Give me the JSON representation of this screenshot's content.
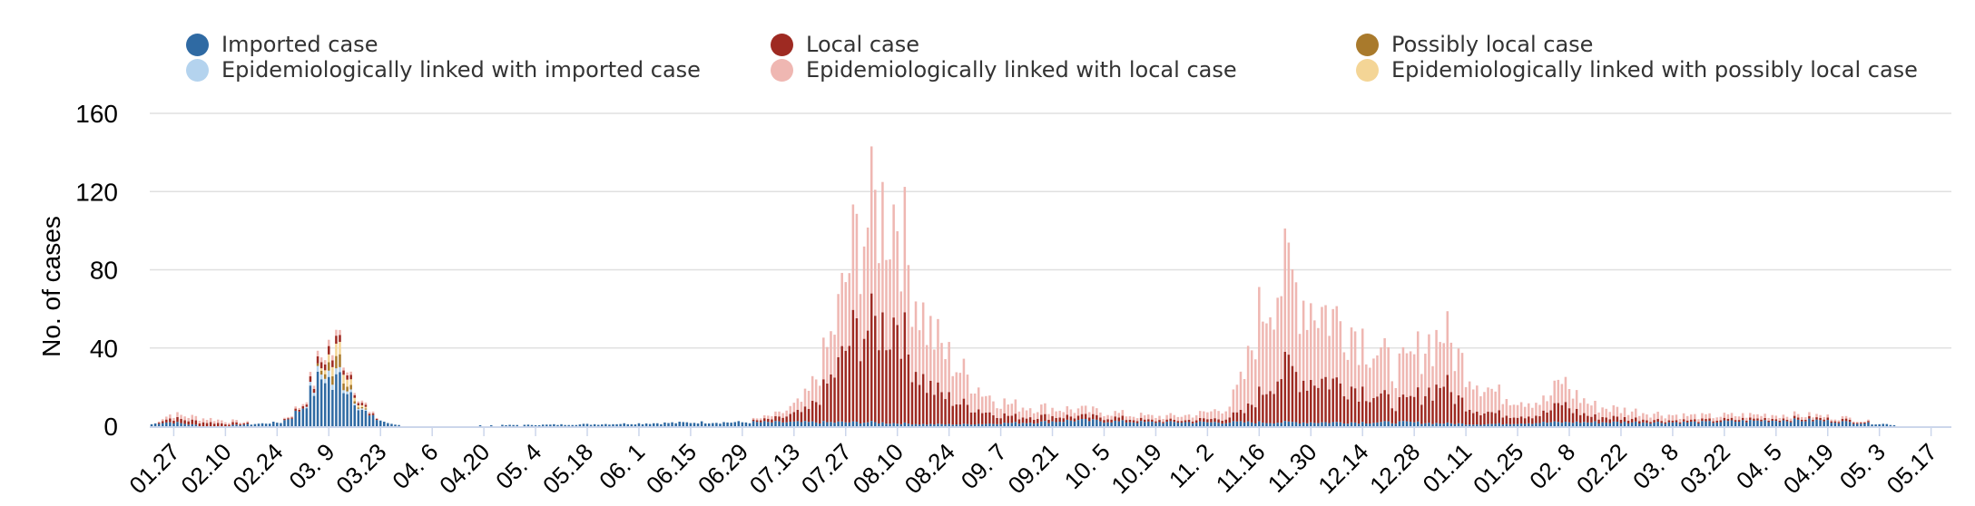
{
  "chart_data": {
    "type": "bar",
    "stacked": true,
    "ylabel": "No. of cases",
    "ylim": [
      0,
      160
    ],
    "yticks": [
      "0",
      "40",
      "80",
      "120",
      "160"
    ],
    "grid": true,
    "legend_position": "top",
    "colors": {
      "imported": "#2f6aa3",
      "imported_linked": "#b4d3ee",
      "local": "#9e2a22",
      "local_linked": "#efb7b2",
      "possibly_local": "#a97a2c",
      "possibly_local_linked": "#f4d596"
    },
    "legend": [
      {
        "key": "imported",
        "label": "Imported case"
      },
      {
        "key": "imported_linked",
        "label": "Epidemiologically linked with imported case"
      },
      {
        "key": "local",
        "label": "Local case"
      },
      {
        "key": "local_linked",
        "label": "Epidemiologically linked with local case"
      },
      {
        "key": "possibly_local",
        "label": "Possibly local case"
      },
      {
        "key": "possibly_local_linked",
        "label": "Epidemiologically linked with possibly local case"
      }
    ],
    "x_labels": [
      "01.27",
      "02.10",
      "02.24",
      "03. 9",
      "03.23",
      "04. 6",
      "04.20",
      "05. 4",
      "05.18",
      "06. 1",
      "06.15",
      "06.29",
      "07.13",
      "07.27",
      "08.10",
      "08.24",
      "09. 7",
      "09.21",
      "10. 5",
      "10.19",
      "11. 2",
      "11.16",
      "11.30",
      "12.14",
      "12.28",
      "01.11",
      "01.25",
      "02. 8",
      "02.22",
      "03. 8",
      "03.22",
      "04. 5",
      "04.19",
      "05. 3",
      "05.17"
    ],
    "x_label_interval_days": 14,
    "days_before_first_label": 6,
    "total_days": 488,
    "series_daily": [
      {
        "name": "Imported case",
        "key": "imported",
        "anchors": [
          [
            0,
            1
          ],
          [
            3,
            2
          ],
          [
            6,
            2
          ],
          [
            10,
            1
          ],
          [
            17,
            0
          ],
          [
            27,
            1
          ],
          [
            35,
            2
          ],
          [
            38,
            5
          ],
          [
            41,
            10
          ],
          [
            45,
            22
          ],
          [
            47,
            27
          ],
          [
            49,
            20
          ],
          [
            51,
            25
          ],
          [
            54,
            18
          ],
          [
            57,
            9
          ],
          [
            59,
            5
          ],
          [
            62,
            3
          ],
          [
            65,
            1
          ],
          [
            70,
            0
          ],
          [
            120,
            1
          ],
          [
            150,
            2
          ],
          [
            168,
            2
          ],
          [
            180,
            2
          ],
          [
            195,
            2
          ],
          [
            210,
            1
          ],
          [
            220,
            1
          ],
          [
            240,
            2
          ],
          [
            250,
            3
          ],
          [
            270,
            2
          ],
          [
            300,
            2
          ],
          [
            320,
            2
          ],
          [
            340,
            2
          ],
          [
            360,
            1
          ],
          [
            380,
            2
          ],
          [
            400,
            2
          ],
          [
            420,
            2
          ],
          [
            440,
            3
          ],
          [
            450,
            3
          ],
          [
            460,
            2
          ],
          [
            470,
            1
          ],
          [
            475,
            0
          ],
          [
            488,
            0
          ]
        ]
      },
      {
        "name": "Epidemiologically linked with imported case",
        "key": "imported_linked",
        "anchors": [
          [
            0,
            0
          ],
          [
            40,
            0
          ],
          [
            44,
            2
          ],
          [
            48,
            3
          ],
          [
            52,
            2
          ],
          [
            56,
            1
          ],
          [
            60,
            0
          ],
          [
            488,
            0
          ]
        ]
      },
      {
        "name": "Local case",
        "key": "local",
        "anchors": [
          [
            0,
            0
          ],
          [
            5,
            2
          ],
          [
            15,
            2
          ],
          [
            30,
            0
          ],
          [
            40,
            1
          ],
          [
            48,
            4
          ],
          [
            52,
            3
          ],
          [
            58,
            1
          ],
          [
            65,
            0
          ],
          [
            160,
            0
          ],
          [
            170,
            2
          ],
          [
            178,
            6
          ],
          [
            182,
            16
          ],
          [
            186,
            28
          ],
          [
            190,
            45
          ],
          [
            194,
            48
          ],
          [
            198,
            50
          ],
          [
            200,
            48
          ],
          [
            202,
            58
          ],
          [
            205,
            35
          ],
          [
            210,
            20
          ],
          [
            215,
            14
          ],
          [
            220,
            10
          ],
          [
            228,
            5
          ],
          [
            235,
            3
          ],
          [
            240,
            3
          ],
          [
            250,
            2
          ],
          [
            260,
            2
          ],
          [
            270,
            1
          ],
          [
            280,
            1
          ],
          [
            290,
            2
          ],
          [
            296,
            5
          ],
          [
            300,
            14
          ],
          [
            304,
            22
          ],
          [
            308,
            28
          ],
          [
            312,
            22
          ],
          [
            318,
            22
          ],
          [
            322,
            20
          ],
          [
            326,
            18
          ],
          [
            332,
            14
          ],
          [
            336,
            10
          ],
          [
            340,
            10
          ],
          [
            345,
            16
          ],
          [
            348,
            18
          ],
          [
            350,
            22
          ],
          [
            352,
            15
          ],
          [
            358,
            8
          ],
          [
            365,
            5
          ],
          [
            372,
            4
          ],
          [
            376,
            4
          ],
          [
            379,
            6
          ],
          [
            382,
            10
          ],
          [
            385,
            6
          ],
          [
            390,
            3
          ],
          [
            400,
            2
          ],
          [
            410,
            1
          ],
          [
            420,
            1
          ],
          [
            440,
            1
          ],
          [
            460,
            1
          ],
          [
            470,
            0
          ],
          [
            488,
            0
          ]
        ]
      },
      {
        "name": "Epidemiologically linked with local case",
        "key": "local_linked",
        "anchors": [
          [
            0,
            0
          ],
          [
            5,
            2
          ],
          [
            15,
            2
          ],
          [
            30,
            0
          ],
          [
            40,
            1
          ],
          [
            48,
            3
          ],
          [
            52,
            2
          ],
          [
            58,
            1
          ],
          [
            65,
            0
          ],
          [
            160,
            0
          ],
          [
            170,
            2
          ],
          [
            176,
            5
          ],
          [
            180,
            12
          ],
          [
            184,
            20
          ],
          [
            188,
            35
          ],
          [
            192,
            50
          ],
          [
            196,
            58
          ],
          [
            199,
            60
          ],
          [
            202,
            55
          ],
          [
            206,
            42
          ],
          [
            210,
            30
          ],
          [
            215,
            22
          ],
          [
            220,
            16
          ],
          [
            226,
            9
          ],
          [
            232,
            6
          ],
          [
            238,
            5
          ],
          [
            245,
            4
          ],
          [
            255,
            3
          ],
          [
            265,
            2
          ],
          [
            275,
            2
          ],
          [
            285,
            3
          ],
          [
            292,
            6
          ],
          [
            296,
            18
          ],
          [
            300,
            40
          ],
          [
            304,
            48
          ],
          [
            308,
            47
          ],
          [
            312,
            42
          ],
          [
            318,
            35
          ],
          [
            322,
            32
          ],
          [
            326,
            30
          ],
          [
            332,
            22
          ],
          [
            336,
            18
          ],
          [
            340,
            18
          ],
          [
            345,
            25
          ],
          [
            350,
            26
          ],
          [
            355,
            20
          ],
          [
            360,
            14
          ],
          [
            365,
            10
          ],
          [
            372,
            8
          ],
          [
            378,
            6
          ],
          [
            382,
            12
          ],
          [
            386,
            8
          ],
          [
            392,
            5
          ],
          [
            400,
            4
          ],
          [
            410,
            3
          ],
          [
            420,
            2
          ],
          [
            440,
            2
          ],
          [
            460,
            1
          ],
          [
            470,
            0
          ],
          [
            488,
            0
          ]
        ]
      },
      {
        "name": "Possibly local case",
        "key": "possibly_local",
        "anchors": [
          [
            0,
            0
          ],
          [
            44,
            0
          ],
          [
            48,
            4
          ],
          [
            51,
            6
          ],
          [
            53,
            3
          ],
          [
            56,
            1
          ],
          [
            60,
            0
          ],
          [
            488,
            0
          ]
        ]
      },
      {
        "name": "Epidemiologically linked with possibly local case",
        "key": "possibly_local_linked",
        "anchors": [
          [
            0,
            0
          ],
          [
            45,
            0
          ],
          [
            49,
            5
          ],
          [
            52,
            6
          ],
          [
            54,
            3
          ],
          [
            57,
            1
          ],
          [
            60,
            0
          ],
          [
            488,
            0
          ]
        ]
      }
    ]
  }
}
